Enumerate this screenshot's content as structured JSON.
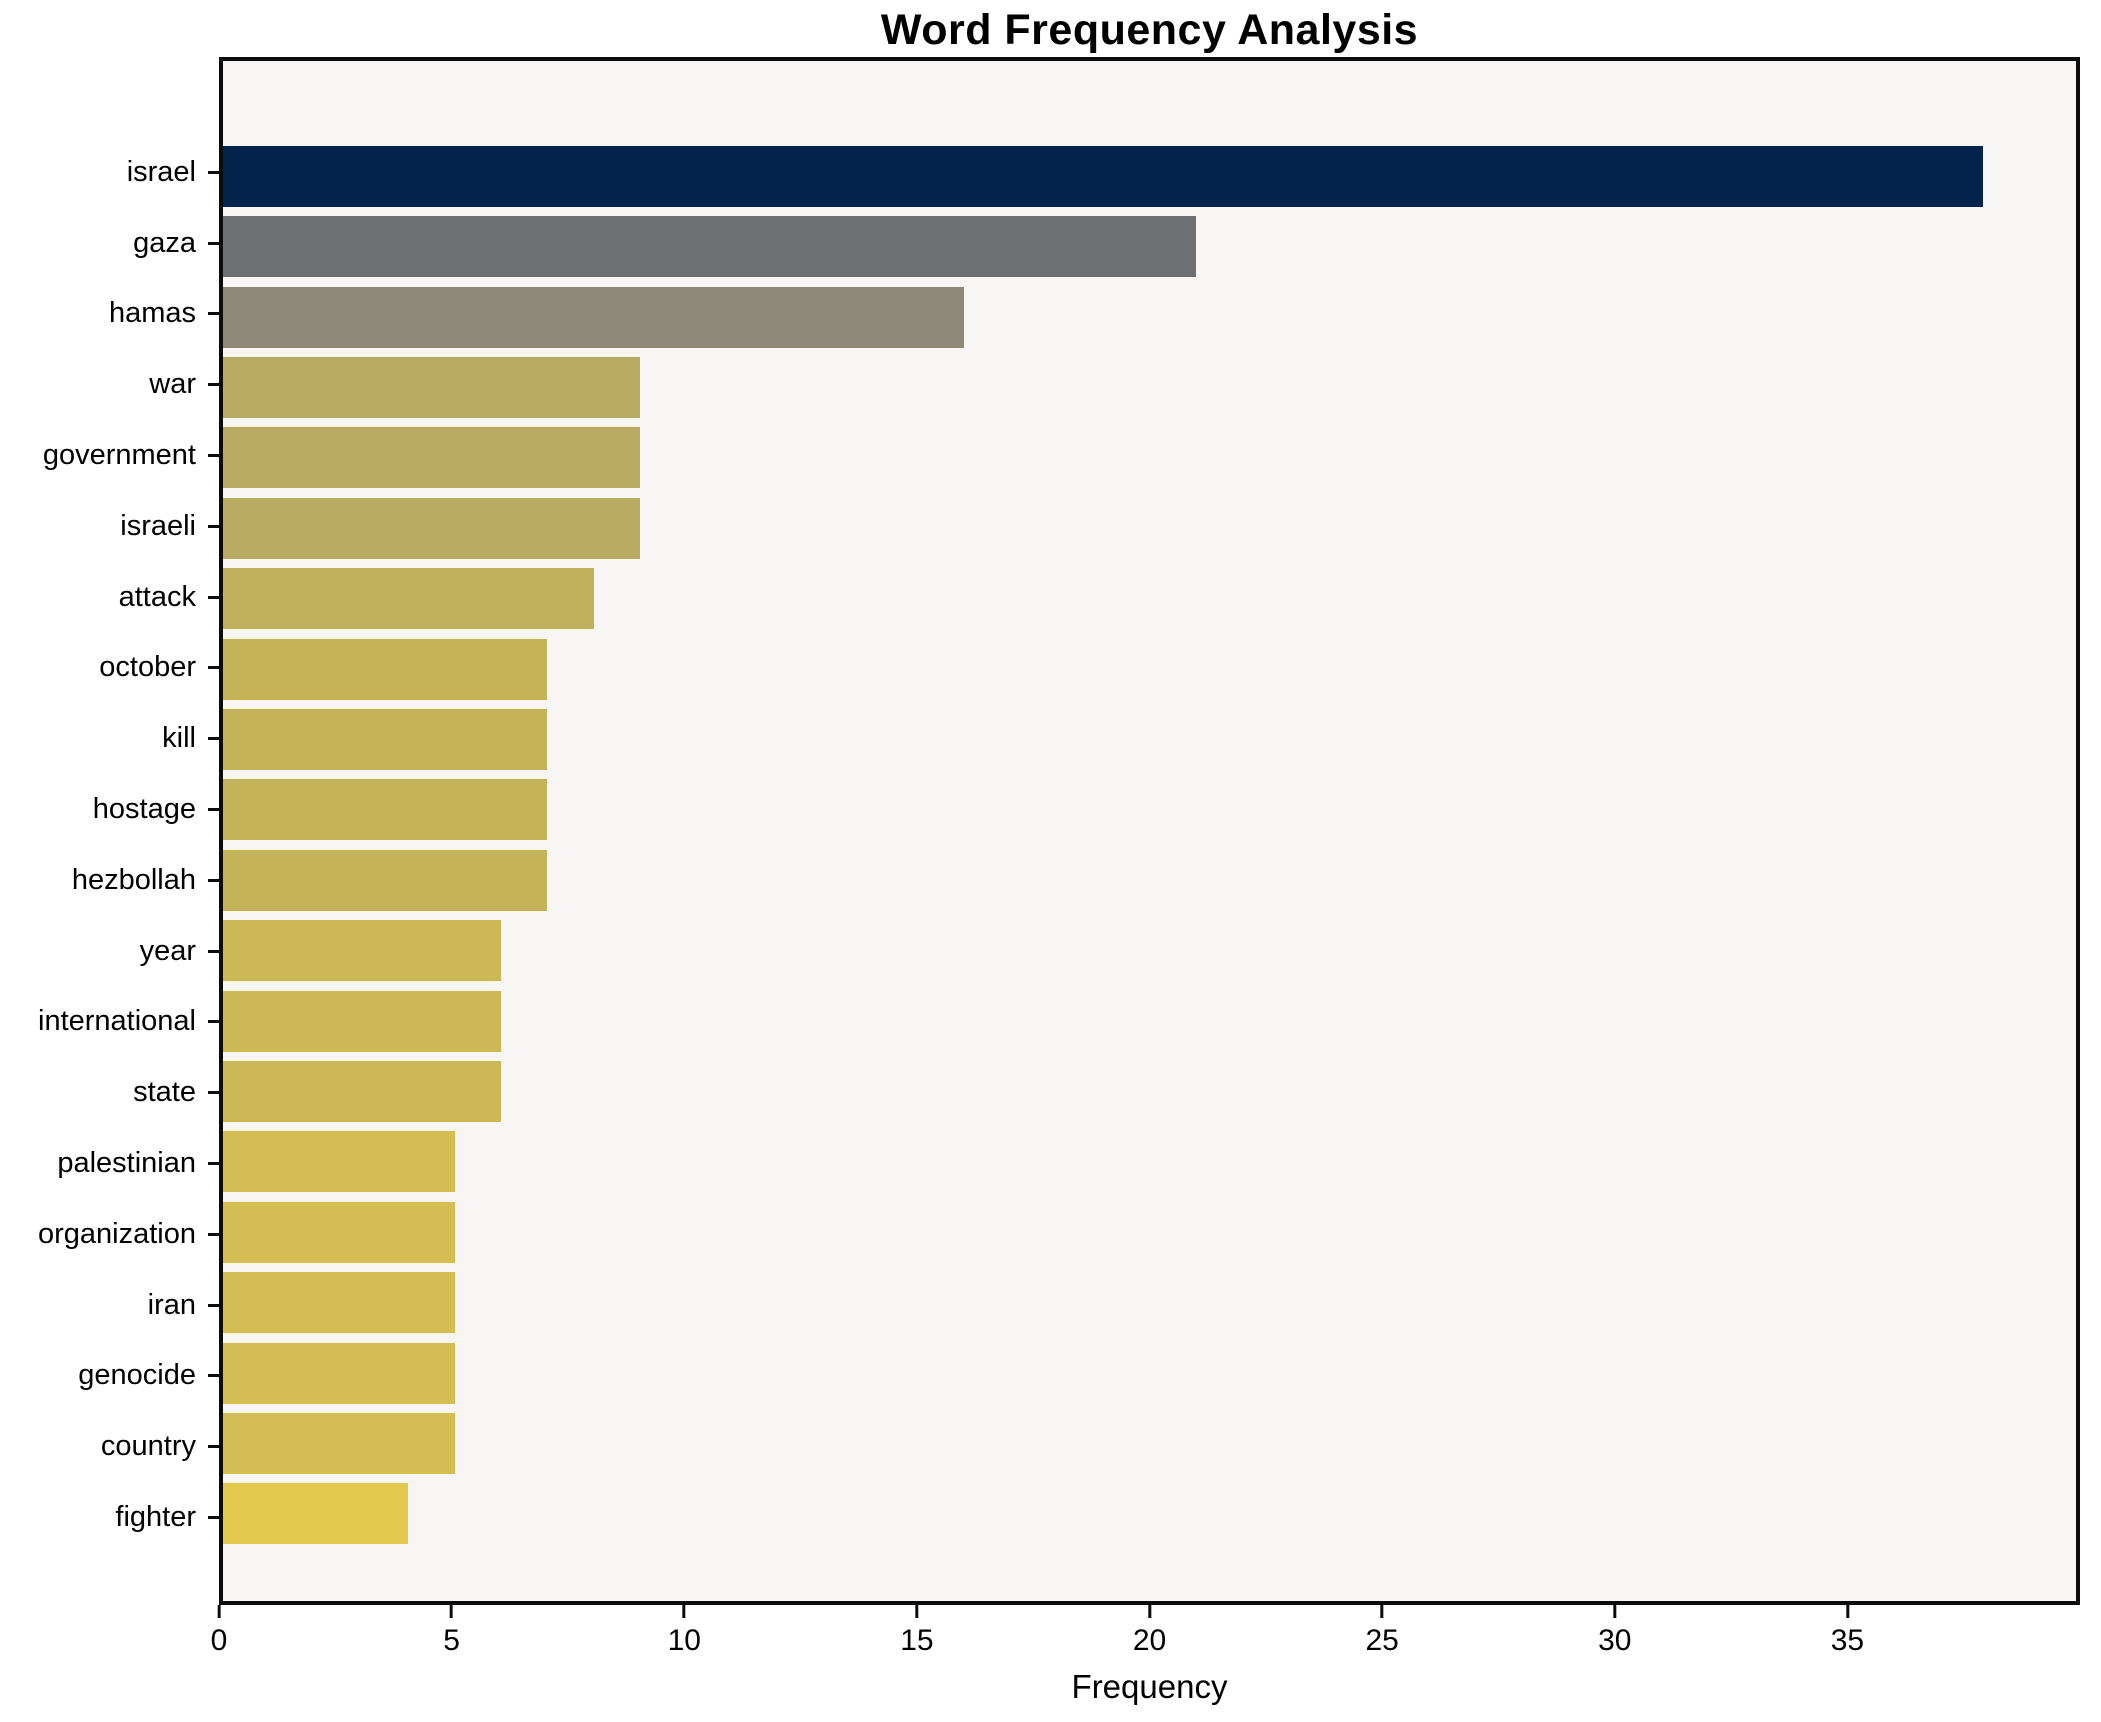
{
  "title": "Word Frequency Analysis",
  "chart_data": {
    "type": "bar",
    "orientation": "horizontal",
    "title": "Word Frequency Analysis",
    "xlabel": "Frequency",
    "ylabel": "",
    "categories": [
      "israel",
      "gaza",
      "hamas",
      "war",
      "government",
      "israeli",
      "attack",
      "october",
      "kill",
      "hostage",
      "hezbollah",
      "year",
      "international",
      "state",
      "palestinian",
      "organization",
      "iran",
      "genocide",
      "country",
      "fighter"
    ],
    "values": [
      38,
      21,
      16,
      9,
      9,
      9,
      8,
      7,
      7,
      7,
      7,
      6,
      6,
      6,
      5,
      5,
      5,
      5,
      5,
      4
    ],
    "bar_colors": [
      "#03234c",
      "#6f7072",
      "#8e8977",
      "#b9ab62",
      "#b9ab62",
      "#b9ab62",
      "#c0b05c",
      "#c5b359",
      "#c5b359",
      "#c5b359",
      "#c5b359",
      "#ccb855",
      "#ccb855",
      "#ccb855",
      "#d4bd52",
      "#d4bd52",
      "#d4bd52",
      "#d4bd52",
      "#d4bd52",
      "#e2c94e"
    ],
    "xticks": [
      0,
      5,
      10,
      15,
      20,
      25,
      30,
      35
    ],
    "xlim": [
      0,
      40
    ],
    "grid": false,
    "legend": false,
    "plot_background": "#f7f6f4",
    "figure_background": "#ffffff",
    "spine_color": "#0c0c0c"
  }
}
